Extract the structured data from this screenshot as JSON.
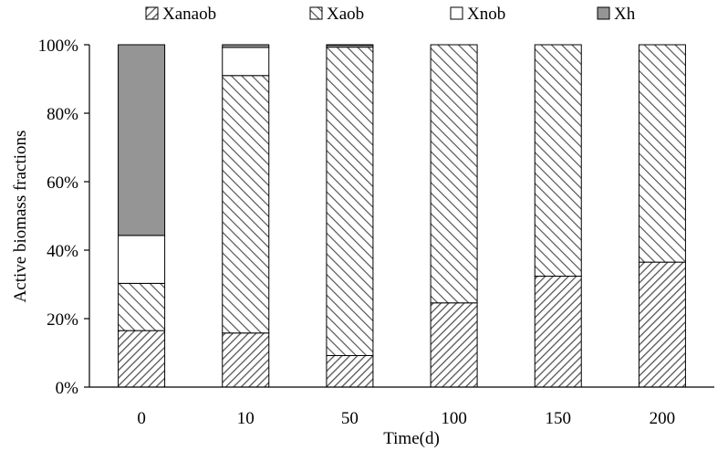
{
  "chart_data": {
    "type": "bar",
    "stacked": true,
    "normalized": true,
    "xlabel": "Time(d)",
    "ylabel": "Active biomass fractions",
    "ylim": [
      0,
      100
    ],
    "yticks": [
      "0%",
      "20%",
      "40%",
      "60%",
      "80%",
      "100%"
    ],
    "categories": [
      "0",
      "10",
      "50",
      "100",
      "150",
      "200"
    ],
    "legend_position": "top",
    "grid": false,
    "series": [
      {
        "name": "Xanaob",
        "values": [
          16.5,
          15.8,
          9.2,
          24.6,
          32.4,
          36.5
        ],
        "pattern": "diagonal-dense"
      },
      {
        "name": "Xaob",
        "values": [
          13.8,
          75.2,
          90.1,
          75.4,
          67.6,
          63.5
        ],
        "pattern": "diagonal-sparse"
      },
      {
        "name": "Xnob",
        "values": [
          14.0,
          8.2,
          0.5,
          0,
          0,
          0
        ],
        "pattern": "white"
      },
      {
        "name": "Xh",
        "values": [
          55.7,
          0.8,
          0.2,
          0,
          0,
          0
        ],
        "pattern": "gray"
      }
    ],
    "colors": {
      "gray": "#959595",
      "stroke": "#000000",
      "white": "#ffffff"
    }
  }
}
